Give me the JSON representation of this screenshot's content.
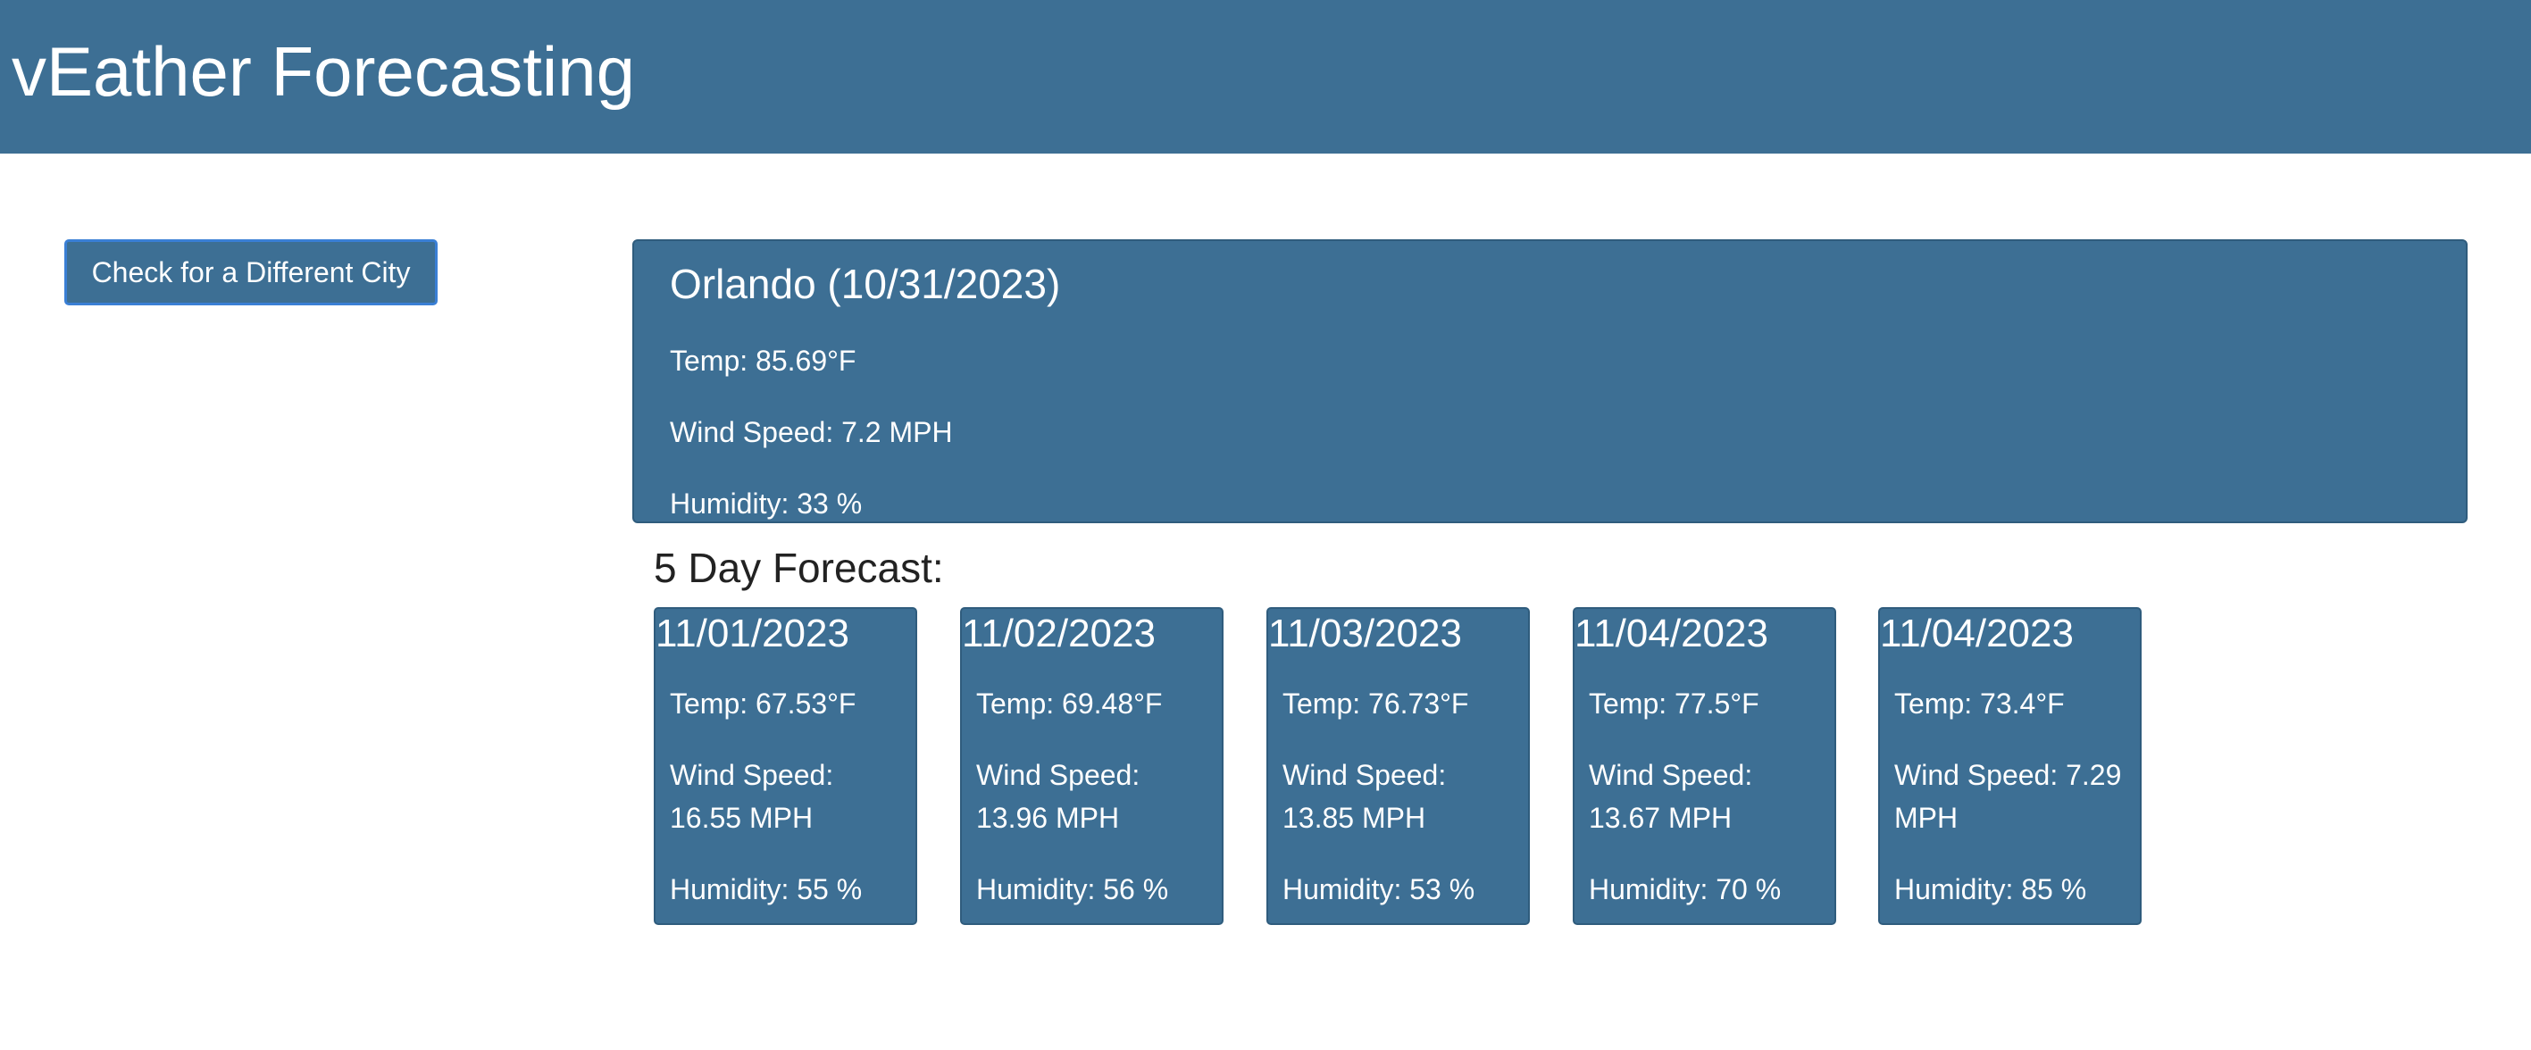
{
  "header": {
    "title": "vEather Forecasting"
  },
  "sidebar": {
    "city_button_label": "Check for a Different City"
  },
  "current": {
    "title": "Orlando (10/31/2023)",
    "temp": "Temp: 85.69°F",
    "wind": "Wind Speed: 7.2 MPH",
    "humidity": "Humidity: 33 %"
  },
  "forecast": {
    "heading": "5 Day Forecast:",
    "days": [
      {
        "date": "11/01/2023",
        "temp": "Temp: 67.53°F",
        "wind": "Wind Speed: 16.55 MPH",
        "humidity": "Humidity: 55 %"
      },
      {
        "date": "11/02/2023",
        "temp": "Temp: 69.48°F",
        "wind": "Wind Speed: 13.96 MPH",
        "humidity": "Humidity: 56 %"
      },
      {
        "date": "11/03/2023",
        "temp": "Temp: 76.73°F",
        "wind": "Wind Speed: 13.85 MPH",
        "humidity": "Humidity: 53 %"
      },
      {
        "date": "11/04/2023",
        "temp": "Temp: 77.5°F",
        "wind": "Wind Speed: 13.67 MPH",
        "humidity": "Humidity: 70 %"
      },
      {
        "date": "11/04/2023",
        "temp": "Temp: 73.4°F",
        "wind": "Wind Speed: 7.29 MPH",
        "humidity": "Humidity: 85 %"
      }
    ]
  },
  "colors": {
    "primary": "#3d6f94",
    "button_border": "#3a7fd5",
    "heading_text": "#222222"
  }
}
